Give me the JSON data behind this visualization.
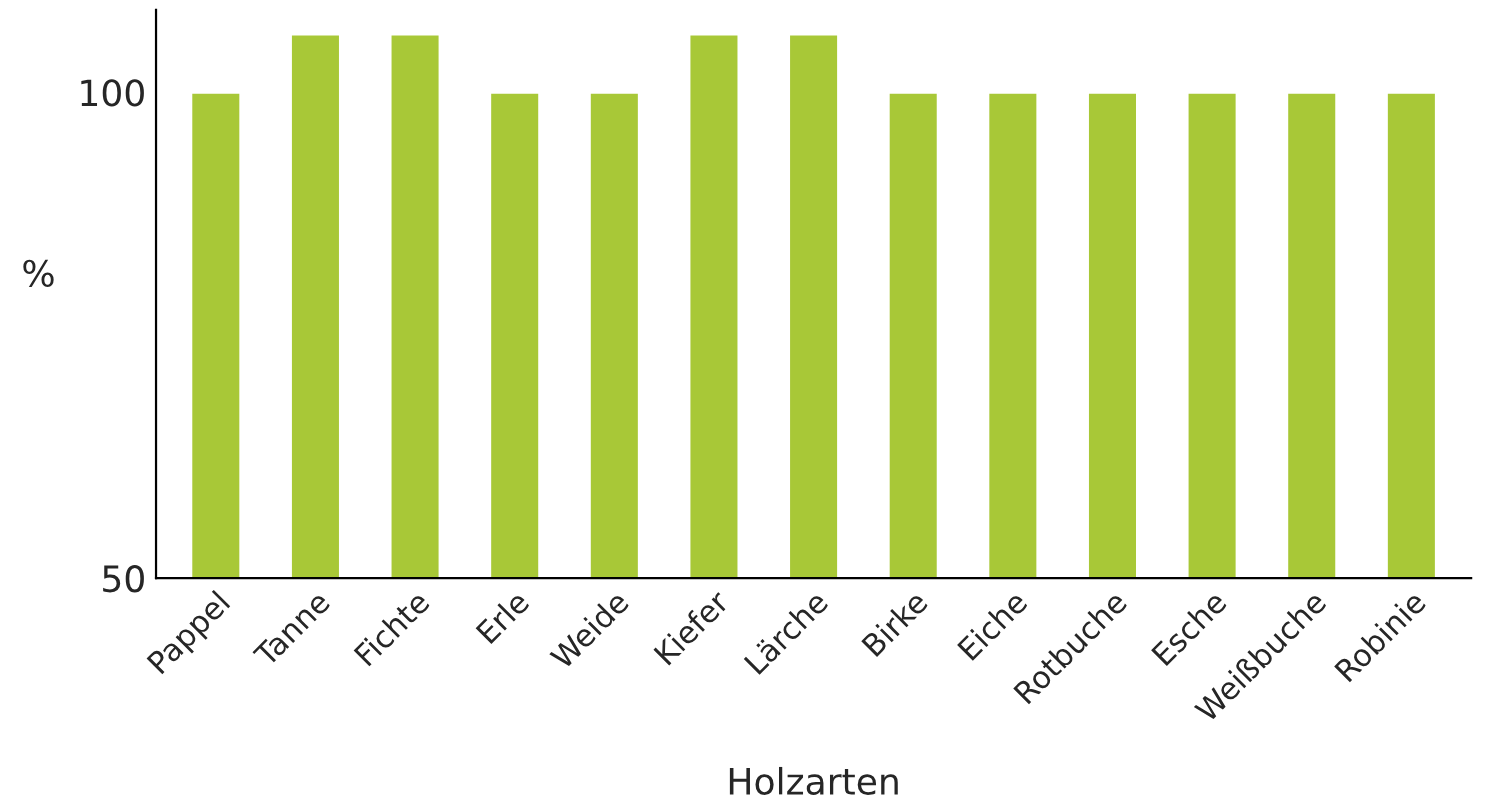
{
  "chart_data": {
    "type": "bar",
    "xlabel": "Holzarten",
    "ylabel": "%",
    "categories": [
      "Pappel",
      "Tanne",
      "Fichte",
      "Erle",
      "Weide",
      "Kiefer",
      "Lärche",
      "Birke",
      "Eiche",
      "Rotbuche",
      "Esche",
      "Weißbuche",
      "Robinie"
    ],
    "values": [
      100,
      106,
      106,
      100,
      100,
      106,
      106,
      100,
      100,
      100,
      100,
      100,
      100
    ],
    "color": "#a8c837",
    "ylim": [
      50,
      108.5
    ],
    "yticks": [
      50,
      100
    ],
    "grid": false
  }
}
